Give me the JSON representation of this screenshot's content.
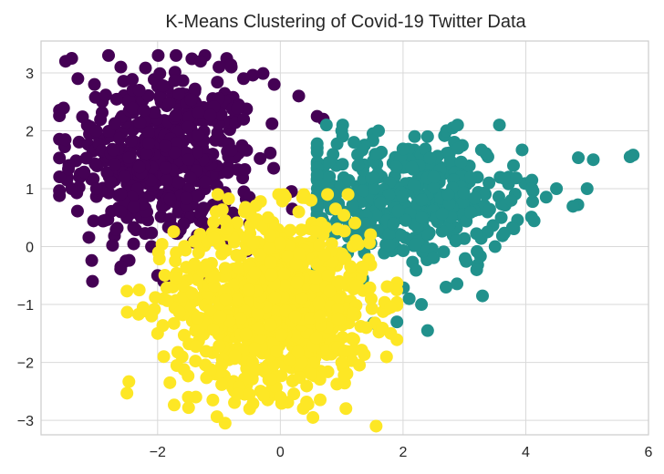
{
  "chart_data": {
    "type": "scatter",
    "title": "K-Means Clustering of Covid-19 Twitter Data",
    "xlabel": "",
    "ylabel": "",
    "xlim": [
      -3.9,
      6.0
    ],
    "ylim": [
      -3.25,
      3.55
    ],
    "x_ticks": [
      -2,
      0,
      2,
      4,
      6
    ],
    "y_ticks": [
      -3,
      -2,
      -1,
      0,
      1,
      2,
      3
    ],
    "x_tick_labels": [
      "−2",
      "0",
      "2",
      "4",
      "6"
    ],
    "y_tick_labels": [
      "−3",
      "−2",
      "−1",
      "0",
      "1",
      "2",
      "3"
    ],
    "grid": true,
    "legend": "none",
    "marker": "circle",
    "clusters": [
      {
        "color": "#440154",
        "center": [
          -1.9,
          1.5
        ],
        "spread": [
          0.75,
          0.75
        ],
        "count": 500,
        "extent": {
          "xmin": -3.6,
          "xmax": 0.8,
          "ymin": -0.6,
          "ymax": 3.3
        },
        "points": [
          [
            -3.5,
            3.2
          ],
          [
            -3.4,
            3.25
          ],
          [
            -3.3,
            2.9
          ],
          [
            -2.8,
            3.3
          ],
          [
            -2.6,
            3.1
          ],
          [
            -2.3,
            2.7
          ],
          [
            -1.7,
            3.3
          ],
          [
            -1.3,
            3.2
          ],
          [
            -1.0,
            3.1
          ],
          [
            -0.8,
            3.1
          ],
          [
            -0.6,
            2.9
          ],
          [
            -0.1,
            2.8
          ],
          [
            0.3,
            2.6
          ],
          [
            0.6,
            2.25
          ],
          [
            0.7,
            2.2
          ],
          [
            -3.4,
            1.0
          ],
          [
            -3.0,
            2.0
          ],
          [
            -2.5,
            0.5
          ],
          [
            -2.6,
            0.6
          ],
          [
            -2.6,
            -0.35
          ],
          [
            -2.1,
            0.0
          ],
          [
            -2.0,
            -0.5
          ],
          [
            -1.9,
            -0.6
          ],
          [
            -1.2,
            0.3
          ],
          [
            -0.9,
            0.1
          ],
          [
            -0.5,
            0.4
          ]
        ]
      },
      {
        "color": "#21918c",
        "center": [
          2.0,
          0.8
        ],
        "spread": [
          0.95,
          0.55
        ],
        "count": 420,
        "extent": {
          "xmin": 0.6,
          "xmax": 5.9,
          "ymin": -1.5,
          "ymax": 2.1
        },
        "points": [
          [
            5.75,
            1.58
          ],
          [
            5.7,
            1.55
          ],
          [
            5.1,
            1.5
          ],
          [
            5.0,
            1.0
          ],
          [
            4.5,
            1.0
          ],
          [
            3.8,
            1.4
          ],
          [
            3.4,
            1.1
          ],
          [
            2.9,
            1.7
          ],
          [
            2.5,
            1.2
          ],
          [
            2.4,
            1.9
          ],
          [
            1.6,
            2.0
          ],
          [
            1.0,
            2.0
          ],
          [
            0.75,
            2.1
          ],
          [
            1.2,
            1.8
          ],
          [
            2.3,
            0.5
          ],
          [
            3.5,
            0.0
          ],
          [
            3.2,
            -0.4
          ],
          [
            2.7,
            -0.7
          ],
          [
            2.3,
            -1.0
          ],
          [
            2.1,
            -0.9
          ],
          [
            2.4,
            -1.45
          ],
          [
            1.9,
            -1.3
          ],
          [
            3.6,
            0.5
          ],
          [
            4.1,
            1.0
          ]
        ]
      },
      {
        "color": "#fde725",
        "center": [
          -0.1,
          -0.95
        ],
        "spread": [
          0.8,
          0.75
        ],
        "count": 950,
        "extent": {
          "xmin": -2.5,
          "xmax": 1.9,
          "ymin": -3.1,
          "ymax": 0.9
        },
        "points": [
          [
            -2.3,
            -0.75
          ],
          [
            -2.1,
            -1.2
          ],
          [
            -1.9,
            -1.9
          ],
          [
            -2.0,
            -1.5
          ],
          [
            -1.8,
            -2.35
          ],
          [
            -1.5,
            -2.6
          ],
          [
            -1.1,
            -2.65
          ],
          [
            -0.9,
            -3.05
          ],
          [
            -0.5,
            -2.8
          ],
          [
            -0.7,
            -2.55
          ],
          [
            0.0,
            -2.6
          ],
          [
            0.5,
            -2.2
          ],
          [
            1.0,
            -2.0
          ],
          [
            1.4,
            -1.4
          ],
          [
            1.8,
            -1.5
          ],
          [
            1.8,
            -1.05
          ],
          [
            0.9,
            0.65
          ],
          [
            0.5,
            0.8
          ],
          [
            0.3,
            0.6
          ],
          [
            -0.2,
            0.5
          ],
          [
            -0.9,
            0.45
          ],
          [
            -1.4,
            -0.3
          ],
          [
            -1.7,
            -0.55
          ]
        ]
      }
    ]
  }
}
